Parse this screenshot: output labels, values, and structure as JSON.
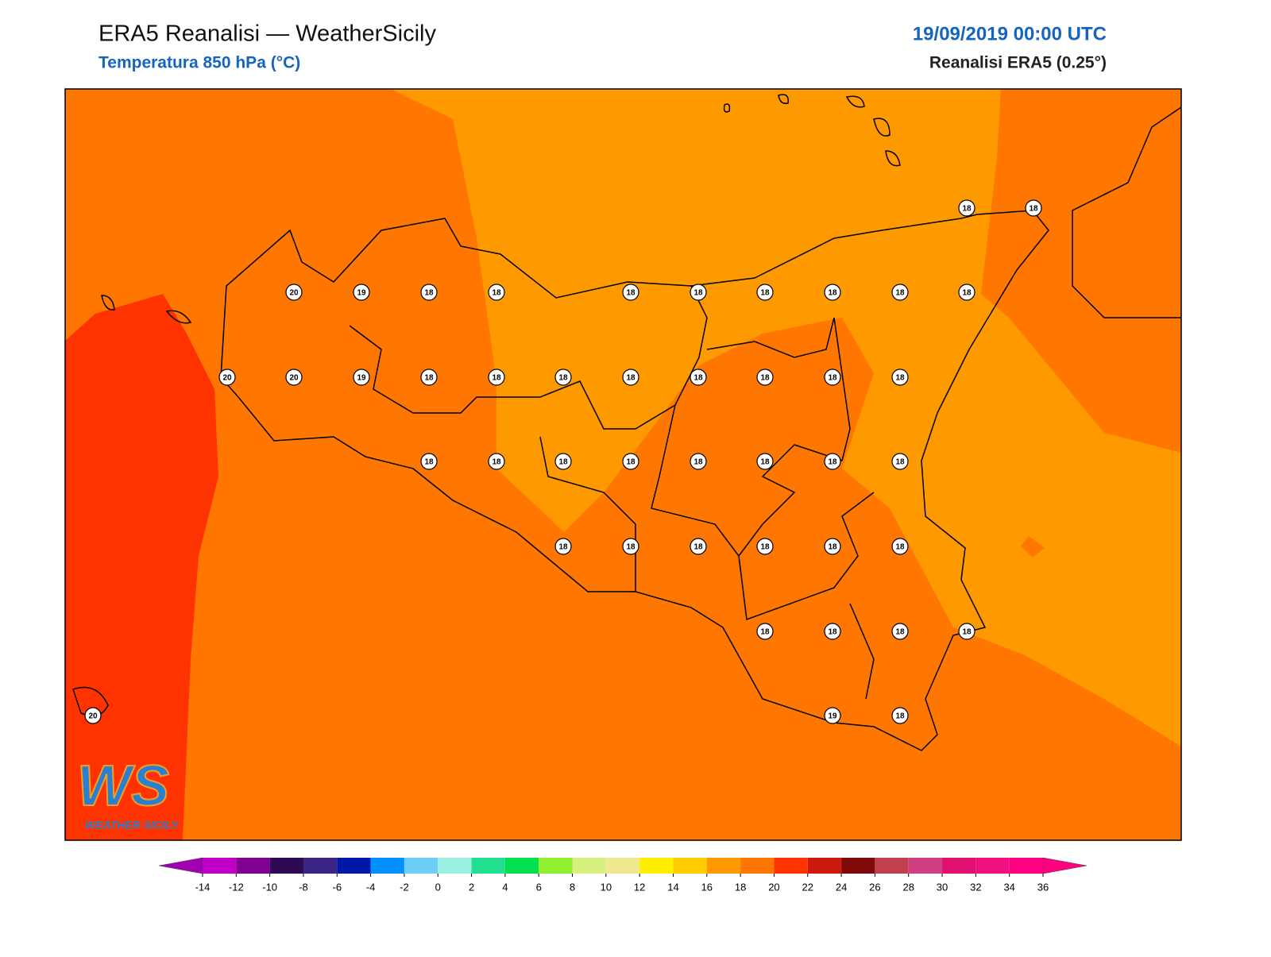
{
  "header": {
    "title": "ERA5 Reanalisi — WeatherSicily",
    "subtitle": "Temperatura 850 hPa (°C)",
    "date": "19/09/2019 00:00 UTC",
    "source": "Reanalisi ERA5 (0.25°)"
  },
  "stations": [
    18,
    18,
    20,
    19,
    18,
    18,
    18,
    18,
    18,
    18,
    18,
    18,
    20,
    20,
    19,
    18,
    18,
    18,
    18,
    18,
    18,
    18,
    18,
    18,
    18,
    18,
    18,
    18,
    18,
    18,
    18,
    18,
    18,
    18,
    18,
    18,
    18,
    18,
    18,
    18,
    18,
    20,
    19,
    18
  ],
  "logo": {
    "mark": "WS",
    "name": "WEATHER SICILY"
  },
  "colorbar": {
    "ticks": [
      -14,
      -12,
      -10,
      -8,
      -6,
      -4,
      -2,
      0,
      2,
      4,
      6,
      8,
      10,
      12,
      14,
      16,
      18,
      20,
      22,
      24,
      26,
      28,
      30,
      32,
      34,
      36
    ],
    "colors": [
      "#c000c8",
      "#80008f",
      "#2e0a55",
      "#3a2585",
      "#0018a8",
      "#0090ff",
      "#6ecff6",
      "#99f0e0",
      "#20e090",
      "#00e050",
      "#90f030",
      "#d8f080",
      "#f0e890",
      "#ffee00",
      "#ffcc00",
      "#ff9900",
      "#ff7700",
      "#ff3300",
      "#cc1a10",
      "#800a0a",
      "#c04050",
      "#d04080",
      "#e01070",
      "#f01080",
      "#ff0080"
    ],
    "under": "#a000b0",
    "over": "#ff0080"
  }
}
